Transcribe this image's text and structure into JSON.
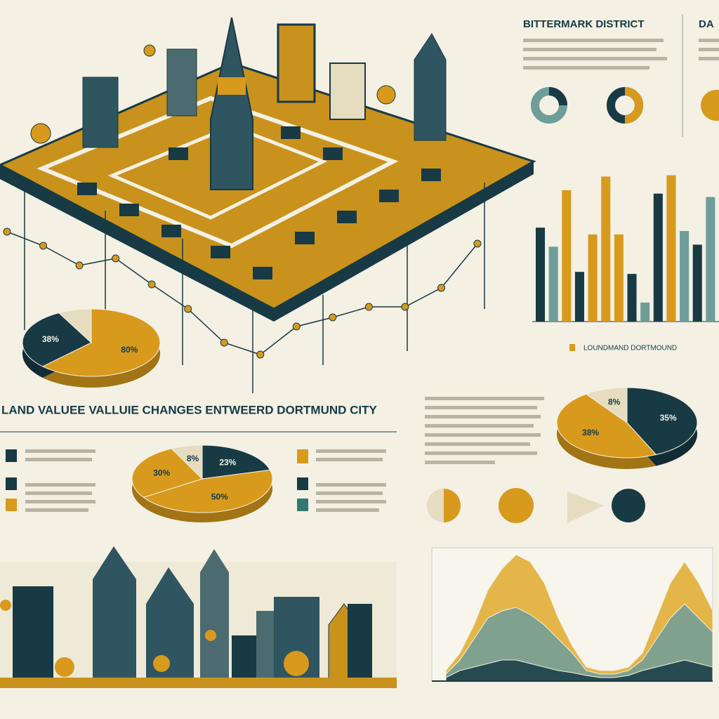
{
  "title": "LAND VALUEE VALLUIE CHANGES ENTWEERD DORTMUND CITY",
  "district": "BITTERMARK DISTRICT",
  "district_cut": "DA",
  "chart_data": [
    {
      "type": "line",
      "color": "#173a45",
      "values": [
        230,
        210,
        182,
        192,
        155,
        120,
        72,
        55,
        95,
        108,
        123,
        123,
        150,
        213
      ],
      "ylim": [
        0,
        560
      ]
    },
    {
      "type": "pie",
      "colors": [
        "#d89a1c",
        "#173a45",
        "#e6dcc0"
      ],
      "values": [
        80,
        38,
        10
      ],
      "value_labels": [
        "80%",
        "38%",
        null
      ]
    },
    {
      "type": "pie",
      "colors": [
        "#173a45",
        "#d89a1c",
        "#d89a1c",
        "#e6dcc0"
      ],
      "values": [
        23,
        50,
        30,
        8
      ],
      "value_labels": [
        "23%",
        "50%",
        "30%",
        "8%"
      ]
    },
    {
      "type": "pie",
      "colors": [
        "#173a45",
        "#d89a1c",
        "#e6dcc0"
      ],
      "values": [
        35,
        38,
        8
      ],
      "value_labels": [
        "35%",
        "38%",
        "8%"
      ]
    },
    {
      "type": "bar",
      "legend": "LOUNDMAND DORTMOUND",
      "legend_color": "#d89a1c",
      "colors": [
        "#173a45",
        "#6e9e9a",
        "#d89a1c",
        "#173a45",
        "#d89a1c",
        "#d89a1c",
        "#d89a1c",
        "#173a45",
        "#6e9e9a",
        "#173a45",
        "#d89a1c",
        "#6e9e9a",
        "#173a45",
        "#6e9e9a"
      ],
      "values": [
        138,
        110,
        193,
        73,
        128,
        213,
        128,
        70,
        28,
        188,
        215,
        133,
        113,
        183
      ],
      "ylim": [
        0,
        230
      ]
    },
    {
      "type": "area",
      "ylim": [
        0,
        190
      ],
      "series": [
        {
          "color": "#e0a92c",
          "values": [
            15,
            40,
            80,
            130,
            160,
            180,
            170,
            140,
            90,
            50,
            20,
            15,
            15,
            20,
            40,
            90,
            140,
            170,
            140,
            100
          ]
        },
        {
          "color": "#6e9e9a",
          "values": [
            10,
            30,
            60,
            90,
            100,
            105,
            95,
            80,
            60,
            40,
            15,
            10,
            10,
            15,
            30,
            60,
            90,
            110,
            90,
            70
          ]
        },
        {
          "color": "#173a45",
          "values": [
            5,
            15,
            20,
            25,
            30,
            30,
            25,
            20,
            15,
            12,
            8,
            5,
            5,
            8,
            15,
            20,
            25,
            30,
            25,
            20
          ]
        }
      ]
    }
  ]
}
